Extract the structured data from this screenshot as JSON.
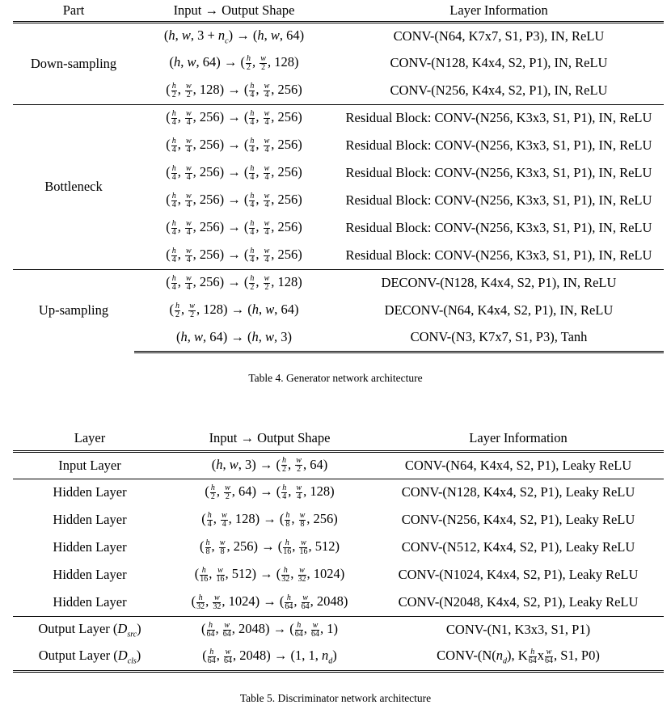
{
  "table4": {
    "headers": [
      "Part",
      "Input → Output Shape",
      "Layer Information"
    ],
    "groups": [
      {
        "part": "Down-sampling",
        "rows": [
          {
            "shape": "(h, w, 3 + n_c) → (h, w, 64)",
            "info": "CONV-(N64, K7x7, S1, P3), IN, ReLU"
          },
          {
            "shape": "(h, w, 64) → (h/2, w/2, 128)",
            "info": "CONV-(N128, K4x4, S2, P1), IN, ReLU"
          },
          {
            "shape": "(h/2, w/2, 128) → (h/4, w/4, 256)",
            "info": "CONV-(N256, K4x4, S2, P1), IN, ReLU"
          }
        ]
      },
      {
        "part": "Bottleneck",
        "rows": [
          {
            "shape": "(h/4, w/4, 256) → (h/4, w/4, 256)",
            "info": "Residual Block: CONV-(N256, K3x3, S1, P1), IN, ReLU"
          },
          {
            "shape": "(h/4, w/4, 256) → (h/4, w/4, 256)",
            "info": "Residual Block: CONV-(N256, K3x3, S1, P1), IN, ReLU"
          },
          {
            "shape": "(h/4, w/4, 256) → (h/4, w/4, 256)",
            "info": "Residual Block: CONV-(N256, K3x3, S1, P1), IN, ReLU"
          },
          {
            "shape": "(h/4, w/4, 256) → (h/4, w/4, 256)",
            "info": "Residual Block: CONV-(N256, K3x3, S1, P1), IN, ReLU"
          },
          {
            "shape": "(h/4, w/4, 256) → (h/4, w/4, 256)",
            "info": "Residual Block: CONV-(N256, K3x3, S1, P1), IN, ReLU"
          },
          {
            "shape": "(h/4, w/4, 256) → (h/4, w/4, 256)",
            "info": "Residual Block: CONV-(N256, K3x3, S1, P1), IN, ReLU"
          }
        ]
      },
      {
        "part": "Up-sampling",
        "rows": [
          {
            "shape": "(h/4, w/4, 256) → (h/2, w/2, 128)",
            "info": "DECONV-(N128, K4x4, S2, P1), IN, ReLU"
          },
          {
            "shape": "(h/2, w/2, 128) → (h, w, 64)",
            "info": "DECONV-(N64, K4x4, S2, P1), IN, ReLU"
          },
          {
            "shape": "(h, w, 64) → (h, w, 3)",
            "info": "CONV-(N3, K7x7, S1, P3), Tanh"
          }
        ]
      }
    ],
    "caption": "Table 4. Generator network architecture"
  },
  "table5": {
    "headers": [
      "Layer",
      "Input → Output Shape",
      "Layer Information"
    ],
    "groups": [
      {
        "rows": [
          {
            "layer": "Input Layer",
            "shape": "(h, w, 3) → (h/2, w/2, 64)",
            "info": "CONV-(N64, K4x4, S2, P1), Leaky ReLU"
          }
        ]
      },
      {
        "rows": [
          {
            "layer": "Hidden Layer",
            "shape": "(h/2, w/2, 64) → (h/4, w/4, 128)",
            "info": "CONV-(N128, K4x4, S2, P1), Leaky ReLU"
          },
          {
            "layer": "Hidden Layer",
            "shape": "(h/4, w/4, 128) → (h/8, w/8, 256)",
            "info": "CONV-(N256, K4x4, S2, P1), Leaky ReLU"
          },
          {
            "layer": "Hidden Layer",
            "shape": "(h/8, w/8, 256) → (h/16, w/16, 512)",
            "info": "CONV-(N512, K4x4, S2, P1), Leaky ReLU"
          },
          {
            "layer": "Hidden Layer",
            "shape": "(h/16, w/16, 512) → (h/32, w/32, 1024)",
            "info": "CONV-(N1024, K4x4, S2, P1), Leaky ReLU"
          },
          {
            "layer": "Hidden Layer",
            "shape": "(h/32, w/32, 1024) → (h/64, w/64, 2048)",
            "info": "CONV-(N2048, K4x4, S2, P1), Leaky ReLU"
          }
        ]
      },
      {
        "rows": [
          {
            "layer": "Output Layer (D_src)",
            "shape": "(h/64, w/64, 2048) → (h/64, w/64, 1)",
            "info": "CONV-(N1, K3x3, S1, P1)"
          },
          {
            "layer": "Output Layer (D_cls)",
            "shape": "(h/64, w/64, 2048) → (1, 1, n_d)",
            "info": "CONV-(N(n_d), K h/64 x w/64, S1, P0)"
          }
        ]
      }
    ],
    "caption": "Table 5. Discriminator network architecture"
  }
}
